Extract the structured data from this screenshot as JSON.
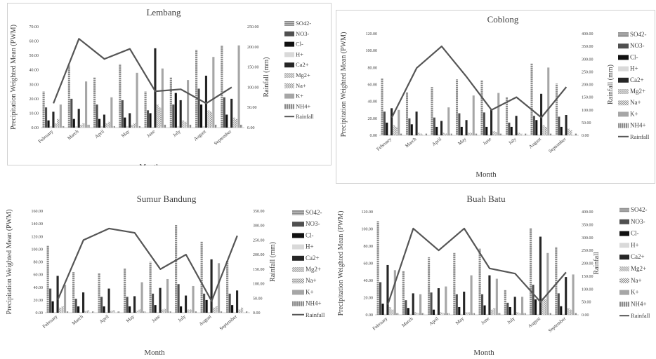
{
  "colors": {
    "rainfall": "#555555",
    "axis": "#bfbfbf",
    "text": "#404040"
  },
  "chart_data": [
    {
      "type": "bar",
      "title": "Lembang",
      "xlabel": "Month",
      "ylabel": "Precipitation Weighted Mean (PWM)",
      "y2label": "Rainfall (mm)",
      "ylim": [
        0,
        70
      ],
      "y_ticks": [
        "0.00",
        "10.00",
        "20.00",
        "30.00",
        "40.00",
        "50.00",
        "60.00",
        "70.00"
      ],
      "y2lim": [
        0,
        250
      ],
      "y2_ticks": [
        "0.00",
        "50.00",
        "100.00",
        "150.00",
        "200.00",
        "250.00"
      ],
      "categories": [
        "February",
        "March",
        "April",
        "May",
        "June",
        "July",
        "August",
        "September"
      ],
      "series": [
        {
          "name": "SO42-",
          "values": [
            25,
            43,
            35,
            44,
            25,
            35,
            54,
            57
          ]
        },
        {
          "name": "NO3-",
          "values": [
            14,
            20,
            16,
            19,
            12,
            16,
            27,
            21
          ]
        },
        {
          "name": "Cl-",
          "values": [
            5,
            6,
            6,
            7,
            10,
            24,
            16,
            9
          ]
        },
        {
          "name": "H+",
          "values": [
            1,
            1,
            1,
            1,
            0.5,
            1,
            1,
            0.5
          ]
        },
        {
          "name": "Ca2+",
          "values": [
            11,
            13,
            9,
            10,
            55,
            19,
            36,
            20
          ]
        },
        {
          "name": "Mg2+",
          "values": [
            3,
            2,
            3,
            2,
            16,
            5,
            12,
            7
          ]
        },
        {
          "name": "Na+",
          "values": [
            6,
            3,
            4,
            3,
            14,
            4,
            11,
            6
          ]
        },
        {
          "name": "K+",
          "values": [
            16,
            32,
            21,
            38,
            41,
            33,
            49,
            57
          ]
        },
        {
          "name": "NH4+",
          "values": [
            1,
            2,
            1,
            1,
            2,
            2,
            2,
            2
          ]
        }
      ],
      "rainfall": [
        60,
        220,
        170,
        195,
        90,
        95,
        60,
        100
      ]
    },
    {
      "type": "bar",
      "title": "Coblong",
      "xlabel": "Month",
      "ylabel": "Precipitation Weighted Mean (PWM)",
      "y2label": "Rainfall (mm)",
      "ylim": [
        0,
        120
      ],
      "y_ticks": [
        "0.00",
        "20.00",
        "40.00",
        "60.00",
        "80.00",
        "100.00",
        "120.00"
      ],
      "y2lim": [
        0,
        400
      ],
      "y2_ticks": [
        "0.00",
        "50.00",
        "100.00",
        "150.00",
        "200.00",
        "250.00",
        "300.00",
        "350.00",
        "400.00"
      ],
      "categories": [
        "February",
        "March",
        "April",
        "May",
        "June",
        "July",
        "August",
        "September"
      ],
      "series": [
        {
          "name": "SO42-",
          "values": [
            67,
            51,
            57,
            66,
            65,
            45,
            85,
            61
          ]
        },
        {
          "name": "NO3-",
          "values": [
            28,
            20,
            21,
            26,
            27,
            15,
            23,
            22
          ]
        },
        {
          "name": "Cl-",
          "values": [
            15,
            13,
            10,
            10,
            10,
            10,
            18,
            10
          ]
        },
        {
          "name": "H+",
          "values": [
            1,
            1,
            1,
            1,
            1,
            1,
            1,
            1
          ]
        },
        {
          "name": "Ca2+",
          "values": [
            32,
            28,
            17,
            18,
            30,
            23,
            49,
            24
          ]
        },
        {
          "name": "Mg2+",
          "values": [
            12,
            3,
            3,
            3,
            5,
            3,
            12,
            8
          ]
        },
        {
          "name": "Na+",
          "values": [
            10,
            2,
            2,
            3,
            4,
            2,
            10,
            6
          ]
        },
        {
          "name": "K+",
          "values": [
            30,
            0,
            33,
            47,
            50,
            0,
            80,
            0
          ]
        },
        {
          "name": "NH4+",
          "values": [
            2,
            2,
            2,
            2,
            2,
            2,
            2,
            2
          ]
        }
      ],
      "rainfall": [
        70,
        265,
        350,
        230,
        100,
        150,
        70,
        190
      ]
    },
    {
      "type": "bar",
      "title": "Sumur Bandung",
      "xlabel": "Month",
      "ylabel": "Precipitation Weighted Mean (PWM)",
      "y2label": "Rainfall (mm)",
      "ylim": [
        0,
        160
      ],
      "y_ticks": [
        "0.00",
        "20.00",
        "40.00",
        "60.00",
        "80.00",
        "100.00",
        "120.00",
        "140.00",
        "160.00"
      ],
      "y2lim": [
        0,
        350
      ],
      "y2_ticks": [
        "0.00",
        "50.00",
        "100.00",
        "150.00",
        "200.00",
        "250.00",
        "300.00",
        "350.00"
      ],
      "categories": [
        "February",
        "March",
        "April",
        "May",
        "June",
        "July",
        "August",
        "September"
      ],
      "series": [
        {
          "name": "SO42-",
          "values": [
            106,
            64,
            62,
            70,
            80,
            138,
            112,
            82
          ]
        },
        {
          "name": "NO3-",
          "values": [
            38,
            22,
            25,
            25,
            30,
            45,
            30,
            30
          ]
        },
        {
          "name": "Cl-",
          "values": [
            18,
            10,
            10,
            10,
            12,
            10,
            20,
            12
          ]
        },
        {
          "name": "H+",
          "values": [
            1,
            1,
            1,
            1,
            1,
            1,
            1,
            1
          ]
        },
        {
          "name": "Ca2+",
          "values": [
            58,
            32,
            38,
            26,
            39,
            27,
            84,
            35
          ]
        },
        {
          "name": "Mg2+",
          "values": [
            8,
            3,
            3,
            3,
            5,
            5,
            8,
            5
          ]
        },
        {
          "name": "Na+",
          "values": [
            10,
            4,
            4,
            5,
            6,
            5,
            10,
            8
          ]
        },
        {
          "name": "K+",
          "values": [
            44,
            0,
            0,
            48,
            53,
            42,
            78,
            0
          ]
        },
        {
          "name": "NH4+",
          "values": [
            2,
            2,
            2,
            2,
            2,
            2,
            2,
            2
          ]
        }
      ],
      "rainfall": [
        45,
        250,
        290,
        275,
        150,
        200,
        40,
        265
      ]
    },
    {
      "type": "bar",
      "title": "Buah Batu",
      "xlabel": "Month",
      "ylabel": "Precipitation Weighted Mean (PWM)",
      "y2label": "Rainfall",
      "ylim": [
        0,
        120
      ],
      "y_ticks": [
        "0.00",
        "20.00",
        "40.00",
        "60.00",
        "80.00",
        "100.00",
        "120.00"
      ],
      "y2lim": [
        0,
        400
      ],
      "y2_ticks": [
        "0.00",
        "50.00",
        "100.00",
        "150.00",
        "200.00",
        "250.00",
        "300.00",
        "350.00",
        "400.00"
      ],
      "categories": [
        "February",
        "March",
        "April",
        "May",
        "June",
        "July",
        "August",
        "September"
      ],
      "series": [
        {
          "name": "SO42-",
          "values": [
            109,
            51,
            67,
            72,
            77,
            29,
            101,
            79
          ]
        },
        {
          "name": "NO3-",
          "values": [
            38,
            17,
            26,
            24,
            24,
            14,
            35,
            25
          ]
        },
        {
          "name": "Cl-",
          "values": [
            13,
            8,
            6,
            9,
            11,
            9,
            18,
            10
          ]
        },
        {
          "name": "H+",
          "values": [
            1,
            1,
            1,
            1,
            1,
            1,
            1,
            1
          ]
        },
        {
          "name": "Ca2+",
          "values": [
            58,
            25,
            31,
            27,
            46,
            21,
            91,
            44
          ]
        },
        {
          "name": "Mg2+",
          "values": [
            9,
            3,
            3,
            3,
            6,
            3,
            20,
            8
          ]
        },
        {
          "name": "Na+",
          "values": [
            6,
            2,
            2,
            3,
            8,
            2,
            18,
            6
          ]
        },
        {
          "name": "K+",
          "values": [
            52,
            24,
            33,
            46,
            42,
            21,
            72,
            47
          ]
        },
        {
          "name": "NH4+",
          "values": [
            2,
            2,
            2,
            2,
            2,
            2,
            2,
            2
          ]
        }
      ],
      "rainfall": [
        40,
        335,
        250,
        335,
        180,
        160,
        50,
        165
      ]
    }
  ]
}
